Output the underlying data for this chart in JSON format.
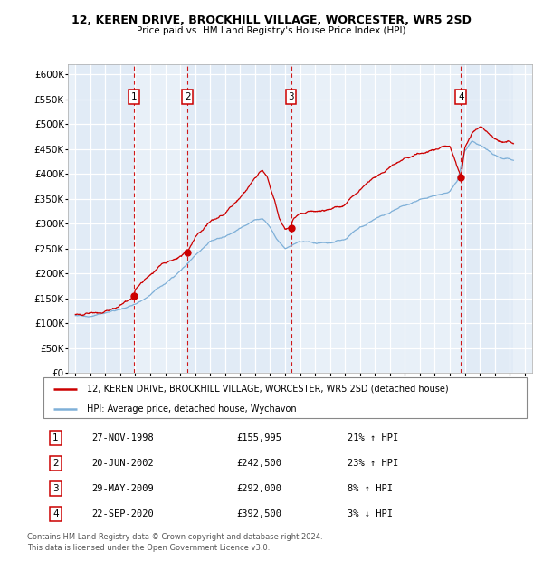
{
  "title1": "12, KEREN DRIVE, BROCKHILL VILLAGE, WORCESTER, WR5 2SD",
  "title2": "Price paid vs. HM Land Registry's House Price Index (HPI)",
  "legend_line1": "12, KEREN DRIVE, BROCKHILL VILLAGE, WORCESTER, WR5 2SD (detached house)",
  "legend_line2": "HPI: Average price, detached house, Wychavon",
  "footer1": "Contains HM Land Registry data © Crown copyright and database right 2024.",
  "footer2": "This data is licensed under the Open Government Licence v3.0.",
  "transactions": [
    {
      "num": 1,
      "date": "27-NOV-1998",
      "price": 155995,
      "pct": "21%",
      "dir": "↑",
      "year": 1998.9
    },
    {
      "num": 2,
      "date": "20-JUN-2002",
      "price": 242500,
      "pct": "23%",
      "dir": "↑",
      "year": 2002.5
    },
    {
      "num": 3,
      "date": "29-MAY-2009",
      "price": 292000,
      "pct": "8%",
      "dir": "↑",
      "year": 2009.4
    },
    {
      "num": 4,
      "date": "22-SEP-2020",
      "price": 392500,
      "pct": "3%",
      "dir": "↓",
      "year": 2020.75
    }
  ],
  "xlim": [
    1994.5,
    2025.5
  ],
  "ylim": [
    0,
    620000
  ],
  "yticks": [
    0,
    50000,
    100000,
    150000,
    200000,
    250000,
    300000,
    350000,
    400000,
    450000,
    500000,
    550000,
    600000
  ],
  "xticks": [
    1995,
    1996,
    1997,
    1998,
    1999,
    2000,
    2001,
    2002,
    2003,
    2004,
    2005,
    2006,
    2007,
    2008,
    2009,
    2010,
    2011,
    2012,
    2013,
    2014,
    2015,
    2016,
    2017,
    2018,
    2019,
    2020,
    2021,
    2022,
    2023,
    2024,
    2025
  ],
  "plot_bg": "#e8f0f8",
  "red_color": "#cc0000",
  "blue_color": "#7fb0d8",
  "grid_color": "#ffffff",
  "vline_color": "#cc0000",
  "hpi_anchors_x": [
    1995,
    1996,
    1997,
    1998,
    1999,
    2000,
    2001,
    2002,
    2003,
    2004,
    2005,
    2006,
    2007,
    2007.5,
    2008,
    2008.5,
    2009,
    2009.5,
    2010,
    2011,
    2012,
    2013,
    2014,
    2015,
    2016,
    2017,
    2018,
    2019,
    2020,
    2020.5,
    2021,
    2021.5,
    2022,
    2022.5,
    2023,
    2023.5,
    2024,
    2024.25
  ],
  "hpi_anchors_y": [
    97000,
    100000,
    107000,
    115000,
    128000,
    148000,
    172000,
    200000,
    230000,
    258000,
    268000,
    285000,
    305000,
    310000,
    295000,
    270000,
    255000,
    265000,
    272000,
    270000,
    268000,
    275000,
    298000,
    315000,
    330000,
    348000,
    358000,
    363000,
    370000,
    390000,
    450000,
    470000,
    465000,
    455000,
    445000,
    440000,
    438000,
    435000
  ],
  "red_anchors_x": [
    1995,
    1996,
    1997,
    1998,
    1998.9,
    1999,
    2000,
    2001,
    2002,
    2002.5,
    2003,
    2004,
    2005,
    2006,
    2007,
    2007.3,
    2007.5,
    2007.8,
    2008,
    2008.3,
    2008.6,
    2009,
    2009.4,
    2009.5,
    2010,
    2011,
    2012,
    2013,
    2014,
    2015,
    2016,
    2017,
    2018,
    2019,
    2020,
    2020.75,
    2021,
    2021.5,
    2022,
    2022.5,
    2023,
    2023.5,
    2024,
    2024.25
  ],
  "red_anchors_y": [
    118000,
    121000,
    128000,
    140000,
    155995,
    170000,
    195000,
    220000,
    235000,
    242500,
    272000,
    305000,
    320000,
    345000,
    385000,
    395000,
    400000,
    390000,
    370000,
    345000,
    310000,
    285000,
    292000,
    305000,
    325000,
    330000,
    332000,
    345000,
    375000,
    395000,
    410000,
    430000,
    440000,
    450000,
    458000,
    392500,
    450000,
    480000,
    490000,
    480000,
    470000,
    465000,
    465000,
    462000
  ]
}
